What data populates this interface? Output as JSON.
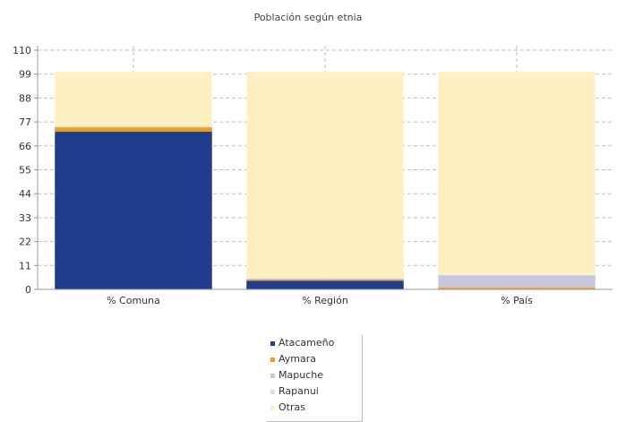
{
  "chart_data": {
    "type": "bar",
    "stacked": true,
    "title": "Población según etnia",
    "categories": [
      "% Comuna",
      "% Región",
      "% País"
    ],
    "ylim": [
      0,
      110
    ],
    "yticks": [
      0,
      11,
      22,
      33,
      44,
      55,
      66,
      77,
      88,
      99,
      110
    ],
    "grid": true,
    "legend_position": "bottom-center",
    "series": [
      {
        "name": "Atacameño",
        "color": "#1f3d8c",
        "values": [
          72.5,
          4.0,
          0.2
        ]
      },
      {
        "name": "Aymara",
        "color": "#f29d1a",
        "values": [
          2.0,
          0.5,
          0.6
        ]
      },
      {
        "name": "Mapuche",
        "color": "#c9c4df",
        "values": [
          0.3,
          0.5,
          5.7
        ]
      },
      {
        "name": "Rapanui",
        "color": "#e0e0e0",
        "values": [
          0.1,
          0.1,
          0.1
        ]
      },
      {
        "name": "Otras",
        "color": "#fdf0c2",
        "values": [
          25.1,
          94.9,
          93.4
        ]
      }
    ]
  }
}
